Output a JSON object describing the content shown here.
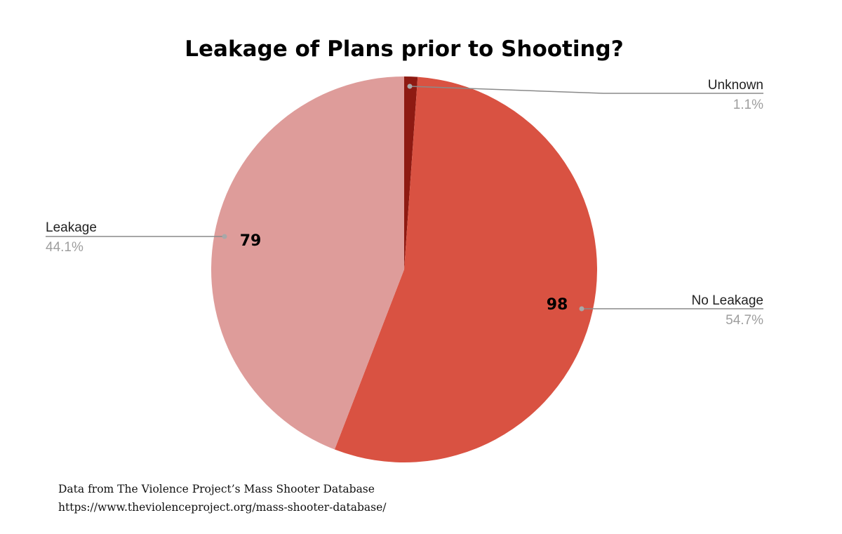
{
  "chart_data": {
    "type": "pie",
    "title": "Leakage of Plans prior to Shooting?",
    "start_angle_deg": 0,
    "direction": "clockwise",
    "slices": [
      {
        "label": "Unknown",
        "value": 2,
        "percent": "1.1%",
        "data_label": "",
        "color": "#8e1a12"
      },
      {
        "label": "No Leakage",
        "value": 98,
        "percent": "54.7%",
        "data_label": "98",
        "color": "#d95242"
      },
      {
        "label": "Leakage",
        "value": 79,
        "percent": "44.1%",
        "data_label": "79",
        "color": "#de9c9a"
      }
    ],
    "legend": "none (leader-line labels)"
  },
  "footer": {
    "line1": "Data from The Violence Project’s Mass Shooter Database",
    "line2": "https://www.theviolenceproject.org/mass-shooter-database/"
  }
}
